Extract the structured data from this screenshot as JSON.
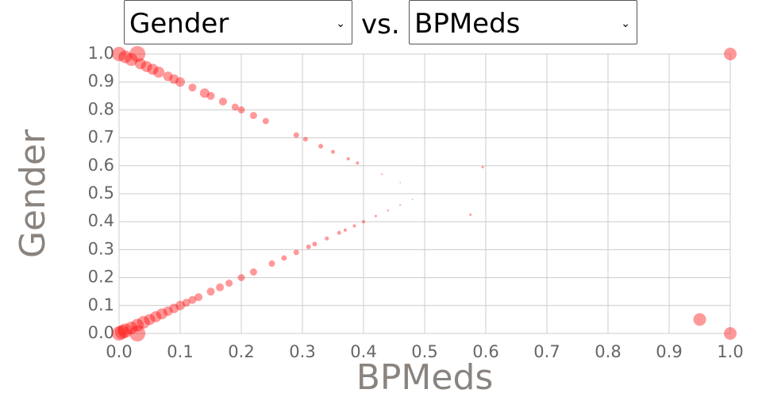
{
  "controls": {
    "y_select": "Gender",
    "separator": "vs.",
    "x_select": "BPMeds"
  },
  "chart_data": {
    "type": "scatter",
    "x_label": "BPMeds",
    "y_label": "Gender",
    "series": [
      {
        "color": "#ff0000",
        "x": [
          0,
          0.01,
          0.02,
          0.03,
          0.035,
          0.045,
          0.055,
          0.065,
          0.08,
          0.09,
          0.1,
          0.12,
          0.14,
          0.15,
          0.17,
          0.19,
          0.2,
          0.22,
          0.24,
          0.29,
          0.305,
          0.33,
          0.35,
          0.375,
          0.39,
          0.43,
          0.46,
          0,
          0.005,
          0.01,
          0.02,
          0.03,
          0.03,
          0.04,
          0.05,
          0.06,
          0.07,
          0.08,
          0.09,
          0.1,
          0.11,
          0.12,
          0.13,
          0.15,
          0.165,
          0.18,
          0.2,
          0.22,
          0.25,
          0.27,
          0.29,
          0.31,
          0.32,
          0.34,
          0.36,
          0.37,
          0.385,
          0.4,
          0.42,
          0.44,
          0.46,
          0.48,
          0.5,
          1,
          1,
          0.95,
          0.595,
          0.575
        ],
        "y": [
          1,
          0.99,
          0.98,
          1,
          0.965,
          0.955,
          0.945,
          0.935,
          0.92,
          0.91,
          0.9,
          0.88,
          0.86,
          0.85,
          0.83,
          0.81,
          0.8,
          0.78,
          0.76,
          0.71,
          0.695,
          0.67,
          0.65,
          0.625,
          0.61,
          0.57,
          0.54,
          0,
          0.005,
          0.01,
          0.02,
          0,
          0.03,
          0.04,
          0.05,
          0.06,
          0.07,
          0.08,
          0.09,
          0.1,
          0.11,
          0.12,
          0.13,
          0.15,
          0.165,
          0.18,
          0.2,
          0.22,
          0.25,
          0.27,
          0.29,
          0.31,
          0.32,
          0.34,
          0.36,
          0.37,
          0.385,
          0.4,
          0.42,
          0.44,
          0.46,
          0.48,
          0.5,
          1,
          0,
          0.05,
          0.595,
          0.425
        ],
        "sizes": [
          9,
          8,
          8,
          10,
          7,
          7,
          7,
          7,
          6,
          6,
          6,
          5,
          6,
          5,
          5,
          4.5,
          4.5,
          4.5,
          4,
          3.5,
          3,
          3,
          2.5,
          2,
          2,
          1,
          0.8,
          9,
          9,
          9,
          8,
          10,
          8,
          8,
          7,
          7,
          7,
          6,
          6,
          6,
          5,
          5,
          5,
          5,
          5,
          4.5,
          4.5,
          4.5,
          4,
          3.5,
          3.5,
          3,
          3,
          2.5,
          2.5,
          2,
          2,
          2,
          1.5,
          1.2,
          1,
          0.8,
          0.6,
          8,
          8,
          8,
          1.5,
          1.5
        ]
      }
    ],
    "marker_opacity": 0.4,
    "xlim": [
      0,
      1
    ],
    "ylim": [
      0,
      1
    ],
    "xticks": [
      {
        "value": 0,
        "label": "0.0"
      },
      0.1,
      0.2,
      0.3,
      0.4,
      0.5,
      0.6,
      0.7,
      0.8,
      0.9,
      {
        "value": 1,
        "label": "1.0"
      }
    ],
    "yticks": [
      {
        "value": 0,
        "label": "0.0"
      },
      0.1,
      0.2,
      0.3,
      0.4,
      0.5,
      0.6,
      0.7,
      0.8,
      0.9,
      {
        "value": 1,
        "label": "1.0"
      }
    ],
    "grid": true
  }
}
